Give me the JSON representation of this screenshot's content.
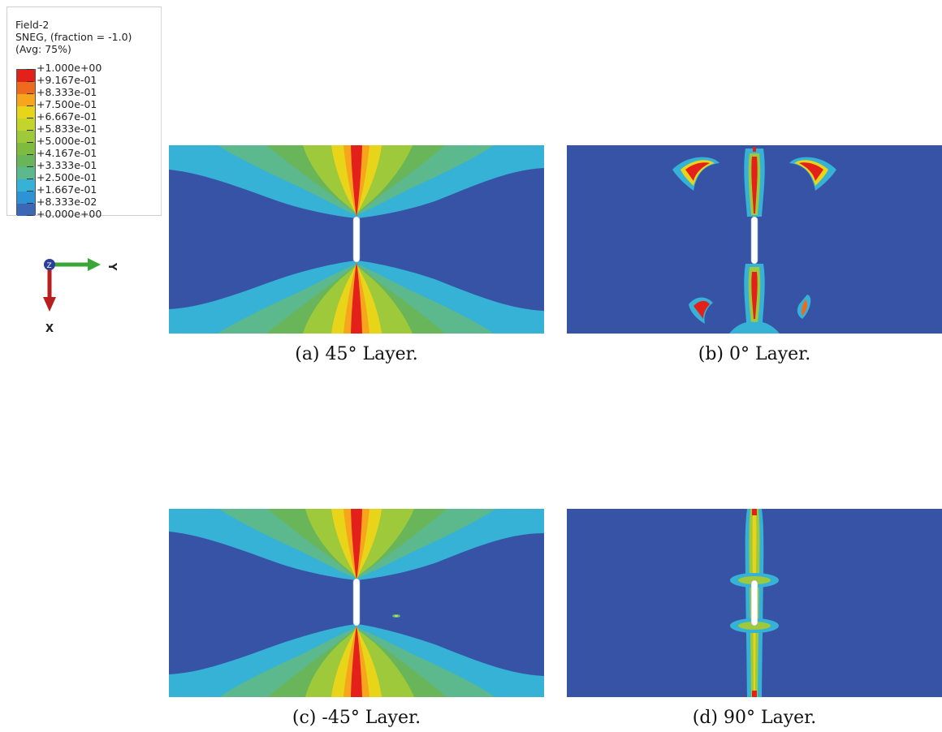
{
  "legend": {
    "field": "Field-2",
    "variable": "SNEG, (fraction = -1.0)",
    "averaging": "(Avg: 75%)",
    "ticks": [
      "+1.000e+00",
      "+9.167e-01",
      "+8.333e-01",
      "+7.500e-01",
      "+6.667e-01",
      "+5.833e-01",
      "+5.000e-01",
      "+4.167e-01",
      "+3.333e-01",
      "+2.500e-01",
      "+1.667e-01",
      "+8.333e-02",
      "+0.000e+00"
    ],
    "band_colors": [
      "#e3211a",
      "#f06a1e",
      "#f7a51c",
      "#e8d51a",
      "#c3d52a",
      "#9dc93a",
      "#7fbb3e",
      "#69b55a",
      "#5cb98e",
      "#36b2d6",
      "#2e93d4",
      "#3a68b7"
    ]
  },
  "triad": {
    "z_label": "Z",
    "y_label": "Y",
    "x_label": "X"
  },
  "panels": [
    {
      "caption": "(a)  45° Layer."
    },
    {
      "caption": "(b)  0° Layer."
    },
    {
      "caption": "(c)  -45° Layer."
    },
    {
      "caption": "(d)  90° Layer."
    }
  ]
}
